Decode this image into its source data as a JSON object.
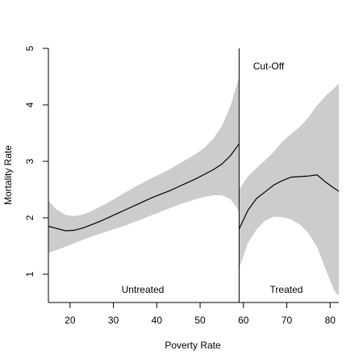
{
  "chart_data": {
    "type": "line",
    "title": "",
    "xlabel": "Poverty Rate",
    "ylabel": "Mortality Rate",
    "xlim": [
      15,
      82
    ],
    "ylim": [
      0.5,
      5
    ],
    "x_ticks": [
      20,
      30,
      40,
      50,
      60,
      70,
      80
    ],
    "y_ticks": [
      1,
      2,
      3,
      4,
      5
    ],
    "grid": false,
    "cutoff": {
      "x": 59,
      "label": "Cut-Off"
    },
    "region_labels": {
      "left": "Untreated",
      "right": "Treated"
    },
    "colors": {
      "line": "#000000",
      "band": "#cccccc"
    },
    "series": [
      {
        "segment": "left",
        "x": [
          15,
          17,
          19,
          21,
          23,
          25,
          27,
          29,
          31,
          33,
          35,
          37,
          39,
          41,
          43,
          45,
          47,
          49,
          51,
          53,
          55,
          57,
          59
        ],
        "y": [
          1.85,
          1.81,
          1.77,
          1.78,
          1.82,
          1.88,
          1.94,
          2.01,
          2.08,
          2.15,
          2.22,
          2.29,
          2.36,
          2.42,
          2.48,
          2.55,
          2.62,
          2.69,
          2.77,
          2.85,
          2.95,
          3.1,
          3.31
        ],
        "lower": [
          1.38,
          1.43,
          1.49,
          1.55,
          1.61,
          1.67,
          1.72,
          1.77,
          1.82,
          1.87,
          1.93,
          1.99,
          2.05,
          2.11,
          2.17,
          2.23,
          2.28,
          2.33,
          2.37,
          2.4,
          2.4,
          2.33,
          2.12
        ],
        "upper": [
          2.3,
          2.14,
          2.05,
          2.03,
          2.06,
          2.12,
          2.2,
          2.28,
          2.37,
          2.46,
          2.55,
          2.63,
          2.71,
          2.78,
          2.86,
          2.95,
          3.04,
          3.13,
          3.24,
          3.4,
          3.62,
          3.98,
          4.5
        ]
      },
      {
        "segment": "right",
        "x": [
          59,
          61,
          63,
          65,
          67,
          69,
          71,
          73,
          75,
          77,
          79,
          81,
          82
        ],
        "y": [
          1.8,
          2.13,
          2.34,
          2.46,
          2.58,
          2.66,
          2.72,
          2.73,
          2.74,
          2.76,
          2.63,
          2.52,
          2.47
        ],
        "lower": [
          1.1,
          1.55,
          1.79,
          1.95,
          2.02,
          2.01,
          1.97,
          1.88,
          1.73,
          1.48,
          1.08,
          0.7,
          0.62
        ],
        "upper": [
          2.5,
          2.73,
          2.88,
          3.02,
          3.17,
          3.35,
          3.49,
          3.61,
          3.78,
          3.99,
          4.16,
          4.3,
          4.38
        ]
      }
    ]
  }
}
